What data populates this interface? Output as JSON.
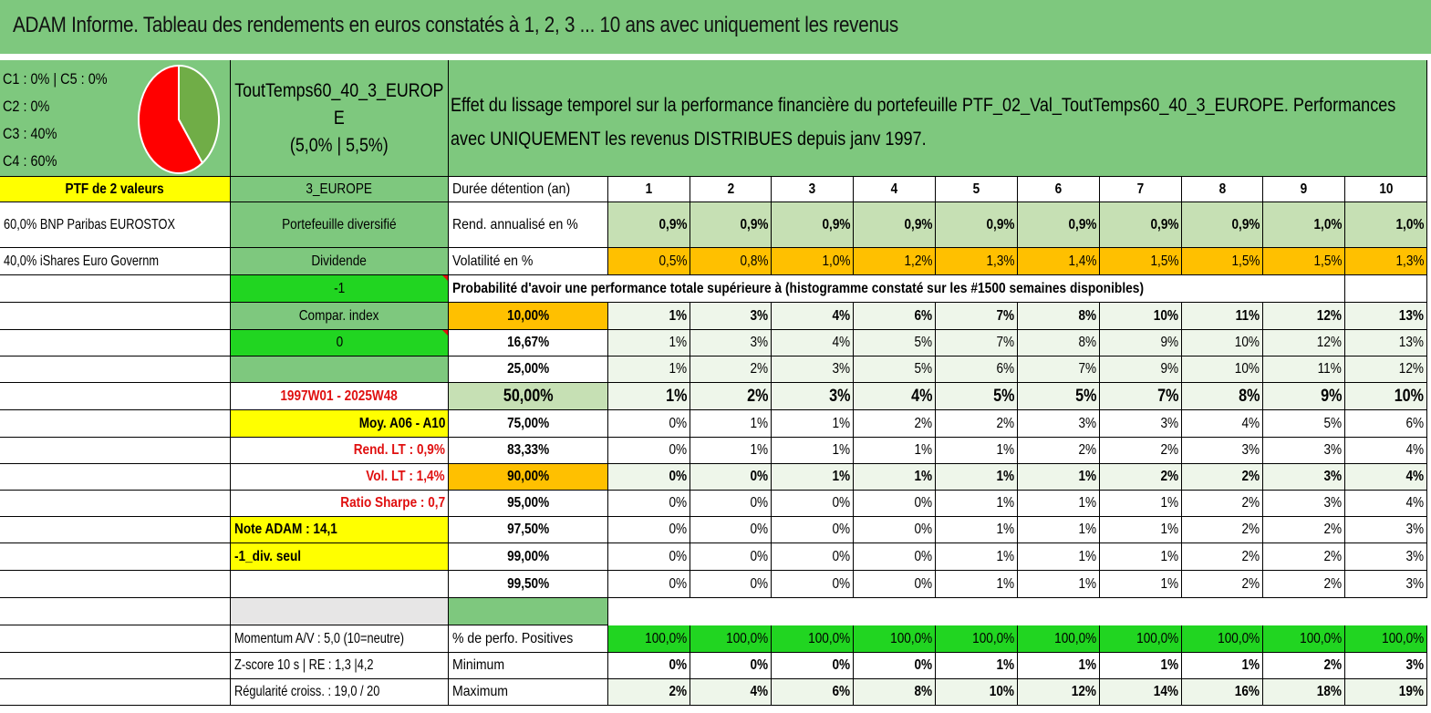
{
  "title": "ADAM Informe. Tableau des rendements en euros constatés à 1, 2, 3 ... 10 ans avec uniquement les revenus",
  "allocation": {
    "line1": "C1 : 0% | C5 : 0%",
    "line2": "C2 : 0%",
    "line3": "C3 : 40%",
    "line4": "C4 : 60%",
    "pie": [
      {
        "label": "C3",
        "value": 40,
        "color": "#70ad47"
      },
      {
        "label": "C4",
        "value": 60,
        "color": "#ff0000"
      }
    ]
  },
  "portfolio": {
    "name_line1": "ToutTemps60_40_3_EUROP",
    "name_line2": "E",
    "name_line3": "(5,0% | 5,5%)",
    "description": "Effet du lissage temporel sur la performance financière du portefeuille PTF_02_Val_ToutTemps60_40_3_EUROPE. Performances avec UNIQUEMENT les revenus DISTRIBUES depuis janv 1997.",
    "ptf_label": "PTF de 2 valeurs",
    "zone": "3_EUROPE",
    "holding1": "60,0% BNP Paribas EUROSTOX",
    "holding2": "40,0% iShares Euro Governm",
    "diversified": "Portefeuille diversifié",
    "dividend": "Dividende"
  },
  "left_info": {
    "minus_one": "-1",
    "compar_index": "Compar. index",
    "zero": "0",
    "period": "1997W01 - 2025W48",
    "moy": "Moy. A06 - A10",
    "rend_lt": "Rend. LT : 0,9%",
    "vol_lt": "Vol. LT : 1,4%",
    "sharpe": "Ratio Sharpe : 0,7",
    "note_adam": "Note ADAM : 14,1",
    "div_seul": "-1_div. seul",
    "momentum": "Momentum A/V : 5,0 (10=neutre)",
    "zscore": "Z-score 10 s | RE : 1,3 |4,2",
    "regularite": "Régularité croiss. : 19,0 / 20"
  },
  "table": {
    "duration_label": "Durée détention (an)",
    "years": [
      "1",
      "2",
      "3",
      "4",
      "5",
      "6",
      "7",
      "8",
      "9",
      "10"
    ],
    "rend_label": "Rend. annualisé en %",
    "rend": [
      "0,9%",
      "0,9%",
      "0,9%",
      "0,9%",
      "0,9%",
      "0,9%",
      "0,9%",
      "0,9%",
      "1,0%",
      "1,0%"
    ],
    "vol_label": "Volatilité en %",
    "vol": [
      "0,5%",
      "0,8%",
      "1,0%",
      "1,2%",
      "1,3%",
      "1,4%",
      "1,5%",
      "1,5%",
      "1,5%",
      "1,3%"
    ],
    "prob_header": "Probabilité d'avoir une performance totale supérieure à (histogramme constaté sur les #1500 semaines disponibles)",
    "prob_rows": [
      {
        "threshold": "10,00%",
        "values": [
          "1%",
          "3%",
          "4%",
          "6%",
          "7%",
          "8%",
          "10%",
          "11%",
          "12%",
          "13%"
        ]
      },
      {
        "threshold": "16,67%",
        "values": [
          "1%",
          "3%",
          "4%",
          "5%",
          "7%",
          "8%",
          "9%",
          "10%",
          "12%",
          "13%"
        ]
      },
      {
        "threshold": "25,00%",
        "values": [
          "1%",
          "2%",
          "3%",
          "5%",
          "6%",
          "7%",
          "9%",
          "10%",
          "11%",
          "12%"
        ]
      },
      {
        "threshold": "50,00%",
        "values": [
          "1%",
          "2%",
          "3%",
          "4%",
          "5%",
          "5%",
          "7%",
          "8%",
          "9%",
          "10%"
        ]
      },
      {
        "threshold": "75,00%",
        "values": [
          "0%",
          "1%",
          "1%",
          "2%",
          "2%",
          "3%",
          "3%",
          "4%",
          "5%",
          "6%"
        ]
      },
      {
        "threshold": "83,33%",
        "values": [
          "0%",
          "1%",
          "1%",
          "1%",
          "1%",
          "2%",
          "2%",
          "3%",
          "3%",
          "4%"
        ]
      },
      {
        "threshold": "90,00%",
        "values": [
          "0%",
          "0%",
          "1%",
          "1%",
          "1%",
          "1%",
          "2%",
          "2%",
          "3%",
          "4%"
        ]
      },
      {
        "threshold": "95,00%",
        "values": [
          "0%",
          "0%",
          "0%",
          "0%",
          "1%",
          "1%",
          "1%",
          "2%",
          "3%",
          "4%"
        ]
      },
      {
        "threshold": "97,50%",
        "values": [
          "0%",
          "0%",
          "0%",
          "0%",
          "1%",
          "1%",
          "1%",
          "2%",
          "2%",
          "3%"
        ]
      },
      {
        "threshold": "99,00%",
        "values": [
          "0%",
          "0%",
          "0%",
          "0%",
          "1%",
          "1%",
          "1%",
          "2%",
          "2%",
          "3%"
        ]
      },
      {
        "threshold": "99,50%",
        "values": [
          "0%",
          "0%",
          "0%",
          "0%",
          "1%",
          "1%",
          "1%",
          "2%",
          "2%",
          "3%"
        ]
      }
    ],
    "pos_label": "% de perfo. Positives",
    "pos": [
      "100,0%",
      "100,0%",
      "100,0%",
      "100,0%",
      "100,0%",
      "100,0%",
      "100,0%",
      "100,0%",
      "100,0%",
      "100,0%"
    ],
    "min_label": "Minimum",
    "min": [
      "0%",
      "0%",
      "0%",
      "0%",
      "1%",
      "1%",
      "1%",
      "1%",
      "2%",
      "3%"
    ],
    "max_label": "Maximum",
    "max": [
      "2%",
      "4%",
      "6%",
      "8%",
      "10%",
      "12%",
      "14%",
      "16%",
      "18%",
      "19%"
    ]
  }
}
